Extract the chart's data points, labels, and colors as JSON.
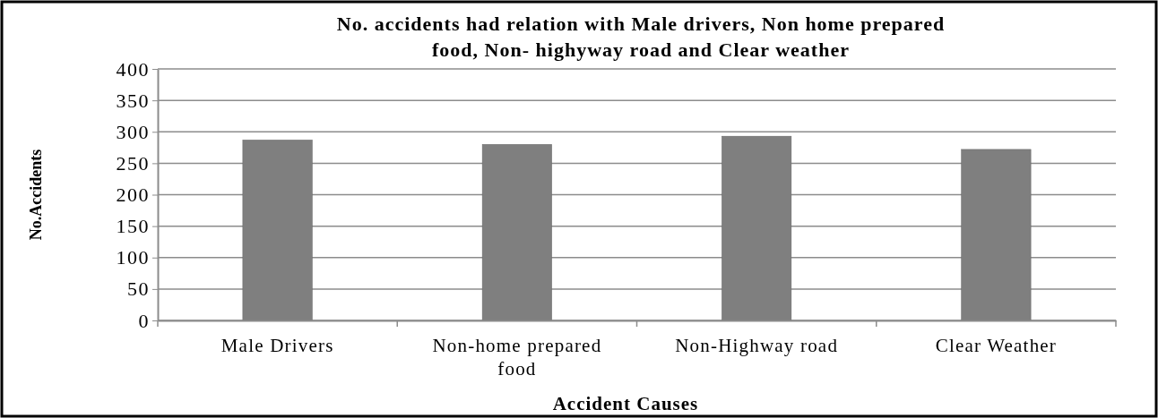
{
  "chart_data": {
    "type": "bar",
    "title": "No. accidents had relation with  Male drivers, Non home prepared food, Non- highyway road and Clear weather",
    "xlabel": "Accident Causes",
    "ylabel": "No.Accidents",
    "categories": [
      "Male Drivers",
      "Non-home prepared food",
      "Non-Highway road",
      "Clear Weather"
    ],
    "values": [
      287,
      280,
      293,
      272
    ],
    "color": "#7f7f7f",
    "ylim": [
      0,
      400
    ],
    "yticks": [
      0,
      50,
      100,
      150,
      200,
      250,
      300,
      350,
      400
    ],
    "grid": "y"
  }
}
